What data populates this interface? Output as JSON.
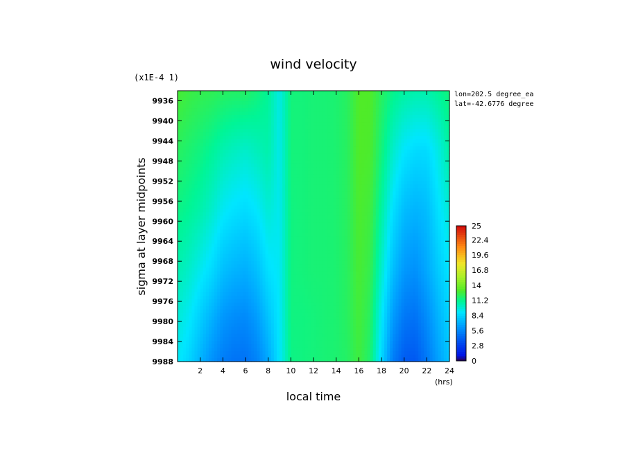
{
  "chart_data": {
    "type": "heatmap",
    "title": "wind velocity",
    "xlabel": "local time",
    "x_unit": "(hrs)",
    "ylabel": "sigma at layer midpoints",
    "y_scale_note": "(x1E-4 1)",
    "annotations": [
      "lon=202.5 degree_ea",
      "lat=-42.6776 degree"
    ],
    "x_ticks": [
      "2",
      "4",
      "6",
      "8",
      "10",
      "12",
      "14",
      "16",
      "18",
      "20",
      "22",
      "24"
    ],
    "x_range": [
      0,
      24
    ],
    "y_ticks": [
      "9936",
      "9940",
      "9944",
      "9948",
      "9952",
      "9956",
      "9960",
      "9964",
      "9968",
      "9972",
      "9976",
      "9980",
      "9984",
      "9988"
    ],
    "y_range": [
      9988,
      9934
    ],
    "colorbar": {
      "ticks": [
        "25",
        "22.4",
        "19.6",
        "16.8",
        "14",
        "11.2",
        "8.4",
        "5.6",
        "2.8",
        "0"
      ],
      "range": [
        0,
        25
      ]
    },
    "x": [
      0,
      1,
      2,
      3,
      4,
      5,
      6,
      7,
      8,
      9,
      10,
      11,
      12,
      13,
      14,
      15,
      16,
      17,
      18,
      19,
      20,
      21,
      22,
      23,
      24
    ],
    "y": [
      9934,
      9946,
      9958,
      9970,
      9979,
      9988
    ],
    "z": [
      [
        12.8,
        12.5,
        12.3,
        12.2,
        12.0,
        11.9,
        11.9,
        11.5,
        11.0,
        9.5,
        11.5,
        11.5,
        11.6,
        11.6,
        11.7,
        12.0,
        13.0,
        13.0,
        12.0,
        11.2,
        10.8,
        10.6,
        10.6,
        11.0,
        11.5
      ],
      [
        12.0,
        11.7,
        11.4,
        11.0,
        10.5,
        10.2,
        10.0,
        10.3,
        10.6,
        9.4,
        11.5,
        11.5,
        11.6,
        11.6,
        11.7,
        12.0,
        13.0,
        12.9,
        11.5,
        10.0,
        9.0,
        8.6,
        8.6,
        9.5,
        10.8
      ],
      [
        11.3,
        11.0,
        10.6,
        10.0,
        9.2,
        8.8,
        8.6,
        9.0,
        9.8,
        9.3,
        11.4,
        11.5,
        11.6,
        11.6,
        11.7,
        12.0,
        12.9,
        12.6,
        10.8,
        8.8,
        7.5,
        7.2,
        7.5,
        8.8,
        9.8
      ],
      [
        10.5,
        10.0,
        9.3,
        8.6,
        7.6,
        7.2,
        7.0,
        7.6,
        8.8,
        9.2,
        11.4,
        11.5,
        11.6,
        11.6,
        11.7,
        12.0,
        12.8,
        12.3,
        10.0,
        7.6,
        6.2,
        5.9,
        6.8,
        8.0,
        9.0
      ],
      [
        9.8,
        9.2,
        8.2,
        7.2,
        6.2,
        5.8,
        5.7,
        6.4,
        7.8,
        9.1,
        11.4,
        11.4,
        11.5,
        11.6,
        11.7,
        12.0,
        12.7,
        12.0,
        9.2,
        6.4,
        5.0,
        4.8,
        5.8,
        7.2,
        8.4
      ],
      [
        9.2,
        8.4,
        7.2,
        6.0,
        5.2,
        4.8,
        4.8,
        5.4,
        6.8,
        9.0,
        11.3,
        11.4,
        11.5,
        11.6,
        11.7,
        11.9,
        12.6,
        11.7,
        8.5,
        5.2,
        3.9,
        3.8,
        5.0,
        6.5,
        7.8
      ]
    ]
  }
}
